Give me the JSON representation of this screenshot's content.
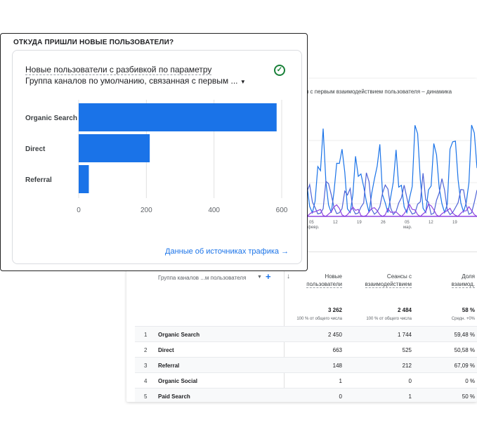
{
  "timeseries": {
    "title": "я с первым взаимодействием пользователя – динамика",
    "x_ticks": [
      {
        "day": "05",
        "month": "февр."
      },
      {
        "day": "12",
        "month": ""
      },
      {
        "day": "19",
        "month": ""
      },
      {
        "day": "26",
        "month": ""
      },
      {
        "day": "05",
        "month": "мар."
      },
      {
        "day": "12",
        "month": ""
      },
      {
        "day": "19",
        "month": ""
      }
    ],
    "colors": [
      "#1a73e8",
      "#4e63d6",
      "#8e44e0"
    ]
  },
  "table": {
    "dimension_header": "Группа каналов ...м пользователя",
    "columns": [
      {
        "line1": "Новые",
        "line2": "пользователи",
        "total": "3 262",
        "total_sub": "100 % от общего числа"
      },
      {
        "line1": "Сеансы с",
        "line2": "взаимодействием",
        "total": "2 484",
        "total_sub": "100 % от общего числа"
      },
      {
        "line1": "Доля",
        "line2": "взаимод.",
        "total": "58 %",
        "total_sub": "Средн. +0%"
      }
    ],
    "rows": [
      {
        "idx": "1",
        "name": "Organic Search",
        "v1": "2 450",
        "v2": "1 744",
        "v3": "59,48 %"
      },
      {
        "idx": "2",
        "name": "Direct",
        "v1": "663",
        "v2": "525",
        "v3": "50,58 %"
      },
      {
        "idx": "3",
        "name": "Referral",
        "v1": "148",
        "v2": "212",
        "v3": "67,09 %"
      },
      {
        "idx": "4",
        "name": "Organic Social",
        "v1": "1",
        "v2": "0",
        "v3": "0 %"
      },
      {
        "idx": "5",
        "name": "Paid Search",
        "v1": "0",
        "v2": "1",
        "v3": "50 %"
      }
    ]
  },
  "card": {
    "title": "ОТКУДА ПРИШЛИ НОВЫЕ ПОЛЬЗОВАТЕЛИ?",
    "subtitle1": "Новые пользователи с разбивкой по параметру",
    "subtitle2": "Группа каналов по умолчанию, связанная с первым ...",
    "link": "Данные об источниках трафика"
  },
  "chart_data": {
    "type": "bar",
    "orientation": "horizontal",
    "categories": [
      "Organic Search",
      "Direct",
      "Referral"
    ],
    "values": [
      585,
      210,
      30
    ],
    "xlim": [
      0,
      600
    ],
    "ticks": [
      0,
      200,
      400,
      600
    ],
    "color": "#1a73e8",
    "grid": true
  }
}
